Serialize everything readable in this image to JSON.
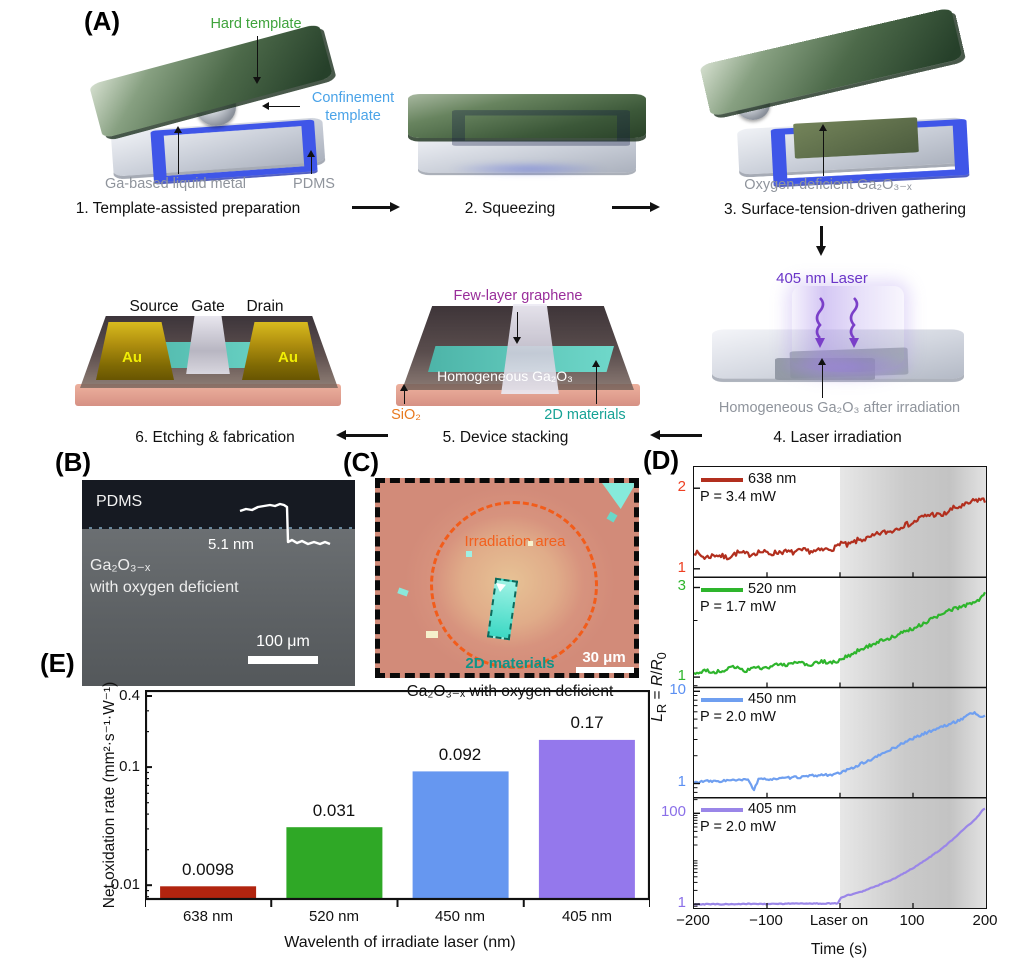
{
  "panels": {
    "A": {
      "label": "(A)",
      "colors": {
        "green_label": "#3fa33c",
        "blue_label": "#4aa3e8",
        "gray_label": "#8f949c",
        "laser_purple": "#6a35c8",
        "graphene_magenta": "#992d9a",
        "sio2_orange": "#e87a20",
        "materials_teal": "#16a295",
        "gold": "#f0ed05"
      },
      "steps": {
        "s1": {
          "caption": "1. Template-assisted preparation",
          "hard_template": "Hard template",
          "confinement_template": "Confinement template",
          "liquid_metal": "Ga-based liquid metal",
          "pdms": "PDMS"
        },
        "s2": {
          "caption": "2. Squeezing"
        },
        "s3": {
          "caption": "3. Surface-tension-driven gathering",
          "film": "Oxygen-deficient Ga₂O₃₋ₓ"
        },
        "s4": {
          "caption": "4. Laser irradiation",
          "laser": "405 nm Laser",
          "film": "Homogeneous Ga₂O₃ after irradiation"
        },
        "s5": {
          "caption": "5. Device stacking",
          "graphene": "Few-layer graphene",
          "film": "Homogeneous Ga₂O₃",
          "sio2": "SiO₂",
          "materials": "2D materials"
        },
        "s6": {
          "caption": "6. Etching & fabrication",
          "source": "Source",
          "gate": "Gate",
          "drain": "Drain",
          "au_left": "Au",
          "au_right": "Au"
        }
      }
    },
    "B": {
      "label": "(B)",
      "pdms": "PDMS",
      "thickness": "5.1 nm",
      "film_line1": "Ga₂O₃₋ₓ",
      "film_line2": "with oxygen deficient",
      "scalebar": "100 μm"
    },
    "C": {
      "label": "(C)",
      "irradiation": "Irradiation area",
      "materials": "2D materials",
      "scalebar": "30 μm",
      "caption": "Ga₂O₃₋ₓ with oxygen deficient",
      "colors": {
        "dash_orange": "#f2601e",
        "teal_text": "#0f9488"
      }
    },
    "D": {
      "label": "(D)"
    },
    "E": {
      "label": "(E)"
    }
  },
  "chart_data": [
    {
      "id": "D",
      "type": "line",
      "xlabel": "Time (s)",
      "ylabel_parts": {
        "sym": "L",
        "sub": "R",
        "eq": " = ",
        "num": "R",
        "slash": "/",
        "den": "R",
        "densub": "0"
      },
      "x_range": [
        -200,
        200
      ],
      "x_tick_labels": [
        "−200",
        "−100",
        "Laser on",
        "100",
        "200"
      ],
      "x_tick_values": [
        -200,
        -100,
        0,
        100,
        200
      ],
      "laser_on_time": 0,
      "shaded_region": [
        0,
        200
      ],
      "legend_position": "top-left",
      "grid": false,
      "subplots": [
        {
          "name": "638 nm",
          "power": "P = 3.4 mW",
          "color": "#b22f1e",
          "tick_color": "#ee4023",
          "y_scale": "log",
          "y_range": [
            0.93,
            2.4
          ],
          "noise": 0.02,
          "y_ticks": [
            {
              "v": 2,
              "label": "2"
            },
            {
              "v": 1,
              "label": "1"
            }
          ],
          "points": [
            [
              -200,
              1.16
            ],
            [
              -185,
              1.1
            ],
            [
              -170,
              1.13
            ],
            [
              -155,
              1.1
            ],
            [
              -140,
              1.15
            ],
            [
              -125,
              1.13
            ],
            [
              -110,
              1.16
            ],
            [
              -95,
              1.14
            ],
            [
              -80,
              1.16
            ],
            [
              -65,
              1.15
            ],
            [
              -50,
              1.17
            ],
            [
              -35,
              1.16
            ],
            [
              -20,
              1.18
            ],
            [
              -5,
              1.2
            ],
            [
              0,
              1.26
            ],
            [
              10,
              1.22
            ],
            [
              25,
              1.28
            ],
            [
              40,
              1.3
            ],
            [
              55,
              1.36
            ],
            [
              70,
              1.38
            ],
            [
              85,
              1.45
            ],
            [
              100,
              1.48
            ],
            [
              110,
              1.55
            ],
            [
              125,
              1.6
            ],
            [
              140,
              1.58
            ],
            [
              155,
              1.68
            ],
            [
              170,
              1.72
            ],
            [
              185,
              1.8
            ],
            [
              195,
              1.82
            ],
            [
              200,
              1.76
            ]
          ]
        },
        {
          "name": "520 nm",
          "power": "P = 1.7 mW",
          "color": "#2eb52c",
          "tick_color": "#2eb52c",
          "y_scale": "log",
          "y_range": [
            0.88,
            3.4
          ],
          "noise": 0.02,
          "y_ticks": [
            {
              "v": 3,
              "label": "3"
            },
            {
              "v": 1,
              "label": "1"
            }
          ],
          "points": [
            [
              -200,
              1.04
            ],
            [
              -185,
              1.08
            ],
            [
              -170,
              1.06
            ],
            [
              -155,
              1.1
            ],
            [
              -140,
              1.14
            ],
            [
              -130,
              1.08
            ],
            [
              -115,
              1.12
            ],
            [
              -100,
              1.13
            ],
            [
              -85,
              1.16
            ],
            [
              -70,
              1.17
            ],
            [
              -55,
              1.19
            ],
            [
              -40,
              1.16
            ],
            [
              -25,
              1.21
            ],
            [
              -10,
              1.19
            ],
            [
              0,
              1.23
            ],
            [
              15,
              1.32
            ],
            [
              30,
              1.42
            ],
            [
              45,
              1.5
            ],
            [
              60,
              1.58
            ],
            [
              75,
              1.65
            ],
            [
              90,
              1.75
            ],
            [
              105,
              1.85
            ],
            [
              120,
              1.98
            ],
            [
              135,
              2.12
            ],
            [
              150,
              2.25
            ],
            [
              165,
              2.38
            ],
            [
              180,
              2.45
            ],
            [
              190,
              2.55
            ],
            [
              200,
              2.82
            ]
          ]
        },
        {
          "name": "450 nm",
          "power": "P = 2.0 mW",
          "color": "#6f9ff0",
          "tick_color": "#5b8ff2",
          "y_scale": "log",
          "y_range": [
            0.7,
            11
          ],
          "noise": 0.025,
          "y_ticks": [
            {
              "v": 10,
              "label": "10"
            },
            {
              "v": 1,
              "label": "1"
            }
          ],
          "points": [
            [
              -200,
              1.02
            ],
            [
              -185,
              1.06
            ],
            [
              -170,
              1.05
            ],
            [
              -155,
              1.08
            ],
            [
              -140,
              1.08
            ],
            [
              -125,
              1.1
            ],
            [
              -118,
              0.84
            ],
            [
              -112,
              1.1
            ],
            [
              -95,
              1.12
            ],
            [
              -80,
              1.13
            ],
            [
              -65,
              1.16
            ],
            [
              -50,
              1.18
            ],
            [
              -35,
              1.22
            ],
            [
              -20,
              1.24
            ],
            [
              -5,
              1.26
            ],
            [
              0,
              1.3
            ],
            [
              15,
              1.45
            ],
            [
              30,
              1.65
            ],
            [
              45,
              1.85
            ],
            [
              60,
              2.15
            ],
            [
              75,
              2.45
            ],
            [
              90,
              2.85
            ],
            [
              105,
              3.2
            ],
            [
              120,
              3.6
            ],
            [
              135,
              4.0
            ],
            [
              150,
              4.4
            ],
            [
              165,
              4.9
            ],
            [
              175,
              5.6
            ],
            [
              185,
              5.9
            ],
            [
              192,
              5.2
            ],
            [
              200,
              5.4
            ]
          ]
        },
        {
          "name": "405 nm",
          "power": "P = 2.0 mW",
          "color": "#9a86e8",
          "tick_color": "#8a6fe8",
          "y_scale": "log",
          "y_range": [
            0.82,
            220
          ],
          "noise": 0.018,
          "y_ticks": [
            {
              "v": 100,
              "label": "100"
            },
            {
              "v": 1,
              "label": "1"
            }
          ],
          "points": [
            [
              -200,
              0.98
            ],
            [
              -180,
              1.0
            ],
            [
              -160,
              0.99
            ],
            [
              -140,
              1.0
            ],
            [
              -120,
              1.01
            ],
            [
              -100,
              1.0
            ],
            [
              -80,
              1.02
            ],
            [
              -60,
              1.03
            ],
            [
              -40,
              1.02
            ],
            [
              -20,
              1.03
            ],
            [
              -2,
              1.04
            ],
            [
              0,
              1.35
            ],
            [
              10,
              1.55
            ],
            [
              20,
              1.7
            ],
            [
              30,
              1.9
            ],
            [
              40,
              2.2
            ],
            [
              50,
              2.5
            ],
            [
              60,
              2.9
            ],
            [
              70,
              3.4
            ],
            [
              80,
              4.1
            ],
            [
              90,
              5.0
            ],
            [
              100,
              6.2
            ],
            [
              110,
              7.8
            ],
            [
              120,
              10
            ],
            [
              130,
              13
            ],
            [
              140,
              17
            ],
            [
              150,
              23
            ],
            [
              160,
              32
            ],
            [
              170,
              45
            ],
            [
              180,
              62
            ],
            [
              185,
              75
            ],
            [
              190,
              88
            ],
            [
              195,
              115
            ],
            [
              198,
              135
            ],
            [
              200,
              110
            ]
          ]
        }
      ]
    },
    {
      "id": "E",
      "type": "bar",
      "categories": [
        "638 nm",
        "520 nm",
        "450 nm",
        "405 nm"
      ],
      "values": [
        0.0098,
        0.031,
        0.092,
        0.17
      ],
      "value_labels": [
        "0.0098",
        "0.031",
        "0.092",
        "0.17"
      ],
      "colors": [
        "#b1240f",
        "#2fa826",
        "#6697f0",
        "#9478ec"
      ],
      "ylabel": "Net oxidation rate (mm²·s⁻¹·W⁻¹)",
      "xlabel": "Wavelenth of irradiate laser (nm)",
      "y_scale": "log",
      "y_ticks": [
        0.4,
        0.1,
        0.01
      ],
      "y_tick_labels": [
        "0.4",
        "0.1",
        "0.01"
      ],
      "ylim": [
        0.0075,
        0.45
      ],
      "grid": false
    }
  ]
}
